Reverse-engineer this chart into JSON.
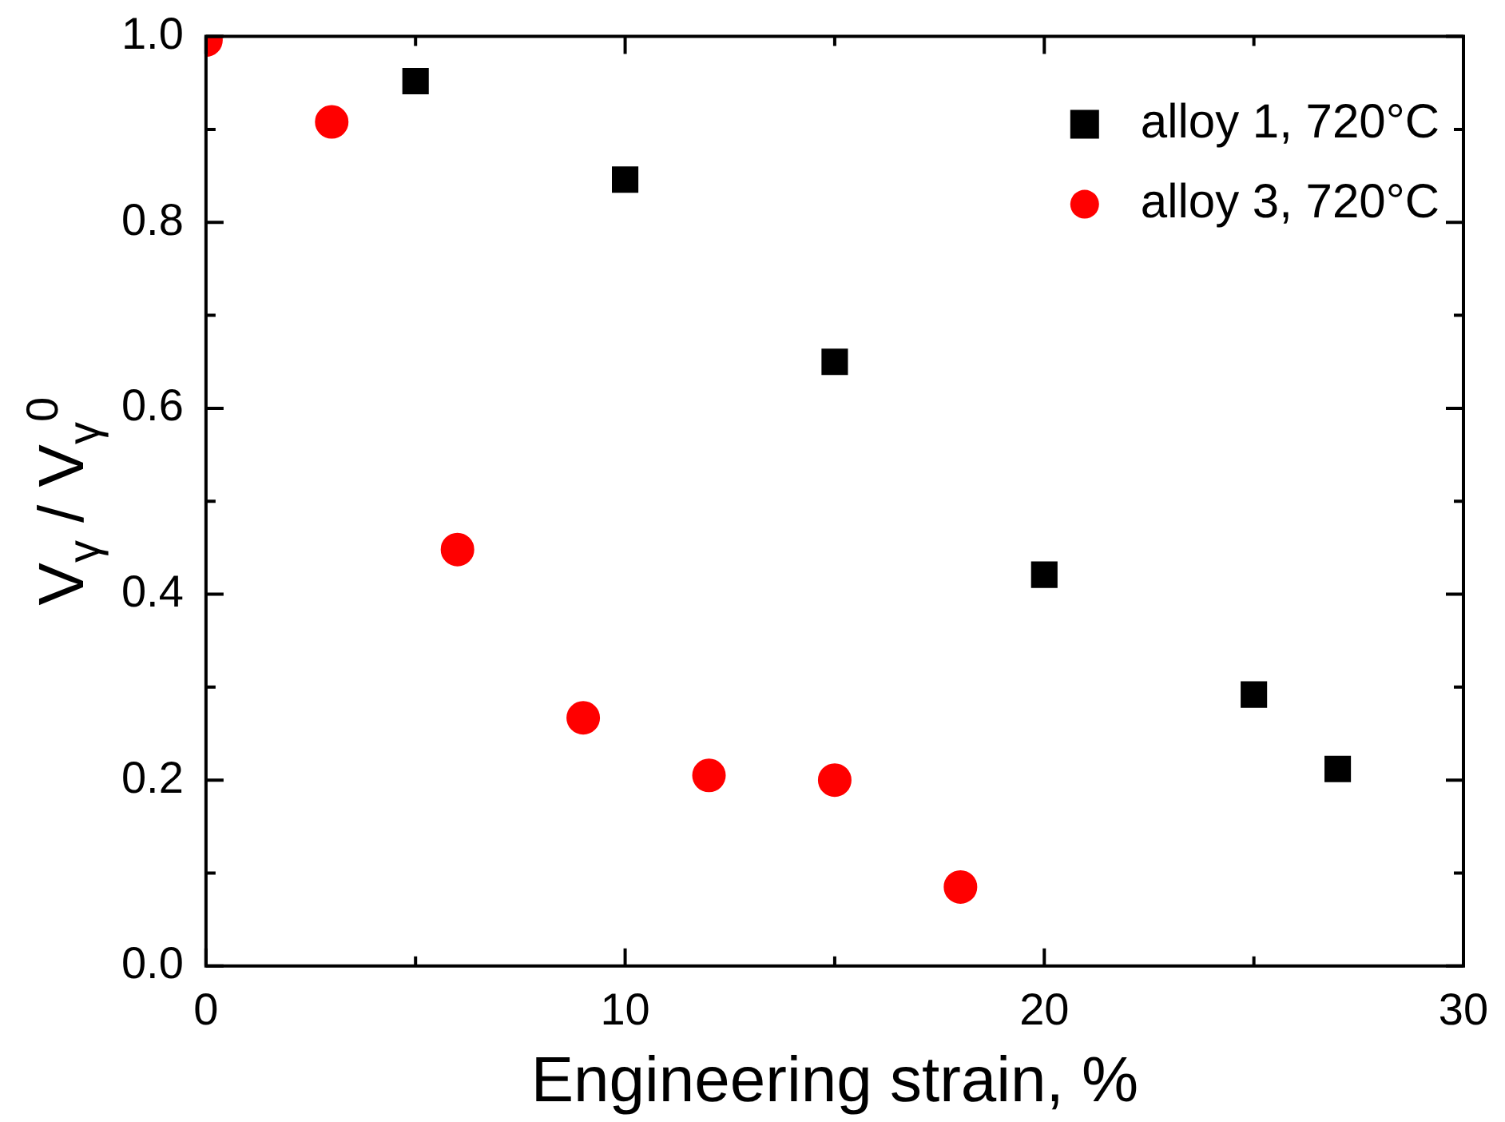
{
  "chart_data": {
    "type": "scatter",
    "xlabel": "Engineering strain, %",
    "ylabel": "V$_{γ}$ / V$_{γ}$$^{0}$",
    "xlim": [
      0,
      30
    ],
    "xticks": [
      0,
      {
        "value": 5,
        "label": null
      },
      10,
      {
        "value": 15,
        "label": null
      },
      20,
      {
        "value": 25,
        "label": null
      },
      30
    ],
    "ylim": [
      0,
      1
    ],
    "yticks": [
      {
        "value": 0,
        "label": "0.0"
      },
      {
        "value": 0.1,
        "label": null
      },
      {
        "value": 0.2,
        "label": "0.2"
      },
      {
        "value": 0.3,
        "label": null
      },
      {
        "value": 0.4,
        "label": "0.4"
      },
      {
        "value": 0.5,
        "label": null
      },
      {
        "value": 0.6,
        "label": "0.6"
      },
      {
        "value": 0.7,
        "label": null
      },
      {
        "value": 0.8,
        "label": "0.8"
      },
      {
        "value": 0.9,
        "label": null
      },
      {
        "value": 1,
        "label": "1.0"
      }
    ],
    "grid": false,
    "legend": "top right",
    "series": [
      {
        "name": "alloy 1, 720°C",
        "color": "#000000",
        "marker": "square",
        "x": [
          5,
          10,
          15,
          20,
          25,
          27
        ],
        "values": [
          0.952,
          0.846,
          0.65,
          0.421,
          0.292,
          0.212
        ]
      },
      {
        "name": "alloy 3, 720°C",
        "color": "#ff0000",
        "marker": "circle",
        "x": [
          0,
          3,
          6,
          9,
          12,
          15,
          18
        ],
        "values": [
          0.996,
          0.908,
          0.448,
          0.267,
          0.205,
          0.2,
          0.085
        ]
      }
    ]
  }
}
